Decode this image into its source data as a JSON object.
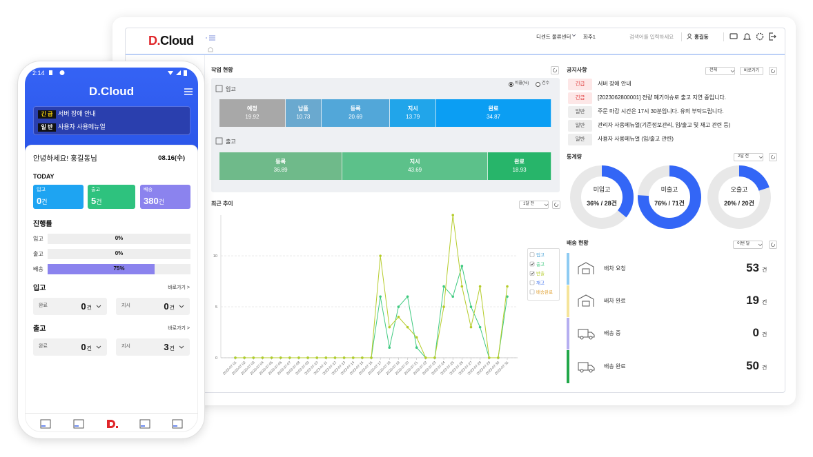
{
  "desktop": {
    "logo": "D.Cloud",
    "header": {
      "center": "디센트 물류센터",
      "owner": "화주1",
      "search_placeholder": "검색어를 입력하세요",
      "user": "홍길동"
    },
    "work_status": {
      "title": "작업 현황",
      "modes": [
        "비율(%)",
        "건수"
      ],
      "selected_mode": 0,
      "inbound": {
        "label": "입고",
        "segments": [
          {
            "name": "예정",
            "value": 19.92,
            "color": "#a8a8a8"
          },
          {
            "name": "납품",
            "value": 10.73,
            "color": "#6aa9cf"
          },
          {
            "name": "등록",
            "value": 20.69,
            "color": "#52a7d9"
          },
          {
            "name": "지시",
            "value": 13.79,
            "color": "#21a5ea"
          },
          {
            "name": "완료",
            "value": 34.87,
            "color": "#0b9ef3"
          }
        ]
      },
      "outbound": {
        "label": "출고",
        "segments": [
          {
            "name": "등록",
            "value": 36.89,
            "color": "#6fba8a"
          },
          {
            "name": "지시",
            "value": 43.69,
            "color": "#5cc18a"
          },
          {
            "name": "완료",
            "value": 18.93,
            "color": "#27b56a"
          }
        ]
      }
    },
    "trend": {
      "title": "최근 추이",
      "period": "1달 전",
      "chart": {
        "type": "line",
        "x": [
          "2023-07-01",
          "2023-07-02",
          "2023-07-03",
          "2023-07-04",
          "2023-07-05",
          "2023-07-06",
          "2023-07-07",
          "2023-07-08",
          "2023-07-09",
          "2023-07-10",
          "2023-07-11",
          "2023-07-12",
          "2023-07-13",
          "2023-07-14",
          "2023-07-15",
          "2023-07-16",
          "2023-07-17",
          "2023-07-18",
          "2023-07-19",
          "2023-07-20",
          "2023-07-21",
          "2023-07-22",
          "2023-07-23",
          "2023-07-24",
          "2023-07-25",
          "2023-07-26",
          "2023-07-27",
          "2023-07-28",
          "2023-07-29",
          "2023-07-30",
          "2023-07-31"
        ],
        "ylim": [
          0,
          14
        ],
        "yticks": [
          0,
          5,
          10
        ],
        "grid": true,
        "series": [
          {
            "name": "입고",
            "color": "#4aa3d8",
            "checked": false,
            "values": null
          },
          {
            "name": "출고",
            "color": "#3fca80",
            "checked": true,
            "values": [
              0,
              0,
              0,
              0,
              0,
              0,
              0,
              0,
              0,
              0,
              0,
              0,
              0,
              0,
              0,
              0,
              6,
              1,
              5,
              6,
              1,
              0,
              0,
              7,
              6,
              9,
              5,
              3,
              0,
              0,
              6
            ]
          },
          {
            "name": "반출",
            "color": "#b5cc2a",
            "checked": true,
            "values": [
              0,
              0,
              0,
              0,
              0,
              0,
              0,
              0,
              0,
              0,
              0,
              0,
              0,
              0,
              0,
              0,
              10,
              3,
              4,
              3,
              2,
              0,
              0,
              5,
              14,
              7,
              3,
              7,
              0,
              0,
              7
            ]
          },
          {
            "name": "재고",
            "color": "#4d7cf0",
            "checked": false,
            "values": null
          },
          {
            "name": "배송완료",
            "color": "#e0a030",
            "checked": false,
            "values": null
          }
        ]
      }
    },
    "notices": {
      "title": "공지사항",
      "filter": "전체",
      "link": "바로가기",
      "items": [
        {
          "tag": "긴급",
          "urgent": true,
          "text": "서버 장애 안내"
        },
        {
          "tag": "긴급",
          "urgent": true,
          "text": "[2023062800001] 전량 폐기이슈로 출고 지연 중입니다."
        },
        {
          "tag": "일반",
          "urgent": false,
          "text": "주문 마감 시간은 17시 30분입니다. 유의 부탁드립니다."
        },
        {
          "tag": "일반",
          "urgent": false,
          "text": "관리자 사용메뉴얼(기준정보관리, 입/출고 및 재고 관련 등)"
        },
        {
          "tag": "일반",
          "urgent": false,
          "text": "사용자 사용메뉴얼 (입/출고 관련)"
        }
      ]
    },
    "stats": {
      "title": "통계량",
      "period": "2달 전",
      "color": "#3366f6",
      "items": [
        {
          "name": "미입고",
          "value": 36,
          "value_label": "36% / 28건"
        },
        {
          "name": "미출고",
          "value": 76,
          "value_label": "76% / 71건"
        },
        {
          "name": "오출고",
          "value": 20,
          "value_label": "20% / 20건"
        }
      ]
    },
    "delivery": {
      "title": "배송 현황",
      "period": "이번 달",
      "unit": "건",
      "items": [
        {
          "name": "배차 요청",
          "value": 53,
          "color": "#8ecbf2"
        },
        {
          "name": "배차 완료",
          "value": 19,
          "color": "#f5e49a"
        },
        {
          "name": "배송 중",
          "value": 0,
          "color": "#b5aef0"
        },
        {
          "name": "배송 완료",
          "value": 50,
          "color": "#22a84a"
        }
      ]
    }
  },
  "mobile": {
    "time": "2:14",
    "logo": "D.Cloud",
    "notices": [
      {
        "tag": "긴 급",
        "urgent": true,
        "text": "서버 장애 안내"
      },
      {
        "tag": "일 반",
        "urgent": false,
        "text": "사용자 사용메뉴얼"
      }
    ],
    "greeting": "안녕하세요! 홍길동님",
    "date": "08.16(수)",
    "today": {
      "title": "TODAY",
      "unit": "건",
      "items": [
        {
          "name": "입고",
          "value": 0,
          "color": "#1ea4f2"
        },
        {
          "name": "출고",
          "value": 5,
          "color": "#2ec27e"
        },
        {
          "name": "배송",
          "value": 380,
          "color": "#8b83ee"
        }
      ]
    },
    "progress": {
      "title": "진행률",
      "color": "#8b83ee",
      "items": [
        {
          "name": "입고",
          "value": 0,
          "value_label": "0%"
        },
        {
          "name": "출고",
          "value": 0,
          "value_label": "0%"
        },
        {
          "name": "배송",
          "value": 75,
          "value_label": "75%"
        }
      ]
    },
    "inbound": {
      "title": "입고",
      "link": "바로가기 >",
      "unit": "건",
      "items": [
        {
          "name": "완료",
          "value": 0
        },
        {
          "name": "지시",
          "value": 0
        }
      ]
    },
    "outbound": {
      "title": "출고",
      "link": "바로가기 >",
      "unit": "건",
      "items": [
        {
          "name": "완료",
          "value": 0
        },
        {
          "name": "지시",
          "value": 3
        }
      ]
    }
  }
}
